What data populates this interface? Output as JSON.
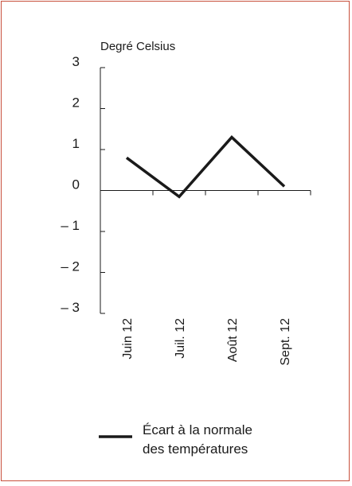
{
  "chart_data": {
    "type": "line",
    "title": "",
    "unit_label": "Degré Celsius",
    "categories": [
      "Juin 12",
      "Juil. 12",
      "Août 12",
      "Sept. 12"
    ],
    "series": [
      {
        "name": "Écart à la normale des températures",
        "name_lines": [
          "Écart à la normale",
          "des températures"
        ],
        "values": [
          0.8,
          -0.15,
          1.3,
          0.1
        ],
        "color": "#1a1a1a"
      }
    ],
    "y_ticks": [
      3,
      2,
      1,
      0,
      -1,
      -2,
      -3
    ],
    "y_tick_labels": [
      "3",
      "2",
      "1",
      "0",
      "– 1",
      "– 2",
      "– 3"
    ],
    "ylim": [
      -3,
      3
    ],
    "grid": false,
    "legend_position": "bottom-left",
    "frame_color": "#c8503c"
  }
}
